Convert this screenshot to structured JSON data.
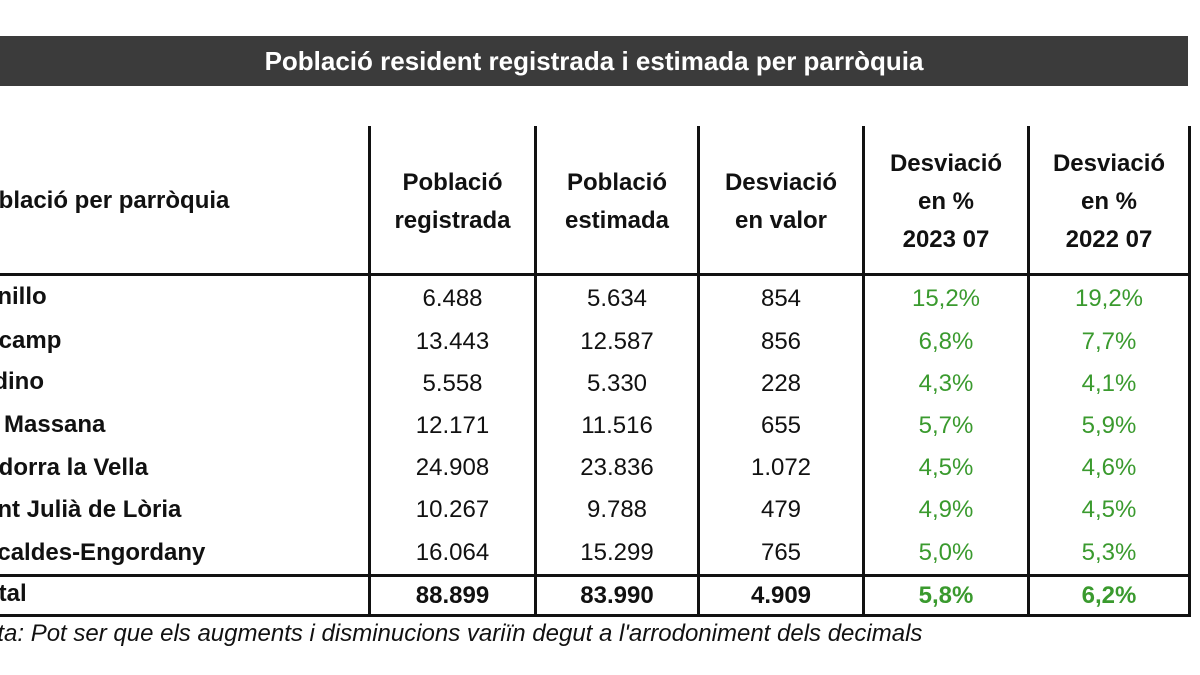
{
  "title": "Població resident registrada i estimada per parròquia",
  "headers": {
    "parish": "oblació per parròquia",
    "registered": "Població\nregistrada",
    "estimated": "Població\nestimada",
    "deviation_value": "Desviació\nen valor",
    "deviation_2023": "Desviació\nen %\n2023 07",
    "deviation_2022": "Desviació\nen %\n2022 07"
  },
  "rows": [
    {
      "name": "anillo",
      "registered": "6.488",
      "estimated": "5.634",
      "deviation": "854",
      "pct2023": "15,2%",
      "pct2022": "19,2%"
    },
    {
      "name": "ncamp",
      "registered": "13.443",
      "estimated": "12.587",
      "deviation": "856",
      "pct2023": "6,8%",
      "pct2022": "7,7%"
    },
    {
      "name": "rdino",
      "registered": "5.558",
      "estimated": "5.330",
      "deviation": "228",
      "pct2023": "4,3%",
      "pct2022": "4,1%"
    },
    {
      "name": "a Massana",
      "registered": "12.171",
      "estimated": "11.516",
      "deviation": "655",
      "pct2023": "5,7%",
      "pct2022": "5,9%"
    },
    {
      "name": "ndorra la Vella",
      "registered": "24.908",
      "estimated": "23.836",
      "deviation": "1.072",
      "pct2023": "4,5%",
      "pct2022": "4,6%"
    },
    {
      "name": "ant Julià de Lòria",
      "registered": "10.267",
      "estimated": "9.788",
      "deviation": "479",
      "pct2023": "4,9%",
      "pct2022": "4,5%"
    },
    {
      "name": "scaldes-Engordany",
      "registered": "16.064",
      "estimated": "15.299",
      "deviation": "765",
      "pct2023": "5,0%",
      "pct2022": "5,3%"
    }
  ],
  "total": {
    "name": "otal",
    "registered": "88.899",
    "estimated": "83.990",
    "deviation": "4.909",
    "pct2023": "5,8%",
    "pct2022": "6,2%"
  },
  "note": "ota: Pot ser que els augments i disminucions variïn degut a l'arrodoniment dels decimals",
  "colors": {
    "title_bg": "#3b3b3b",
    "title_fg": "#ffffff",
    "pct_green": "#3a9a2e",
    "rule": "#111111"
  }
}
